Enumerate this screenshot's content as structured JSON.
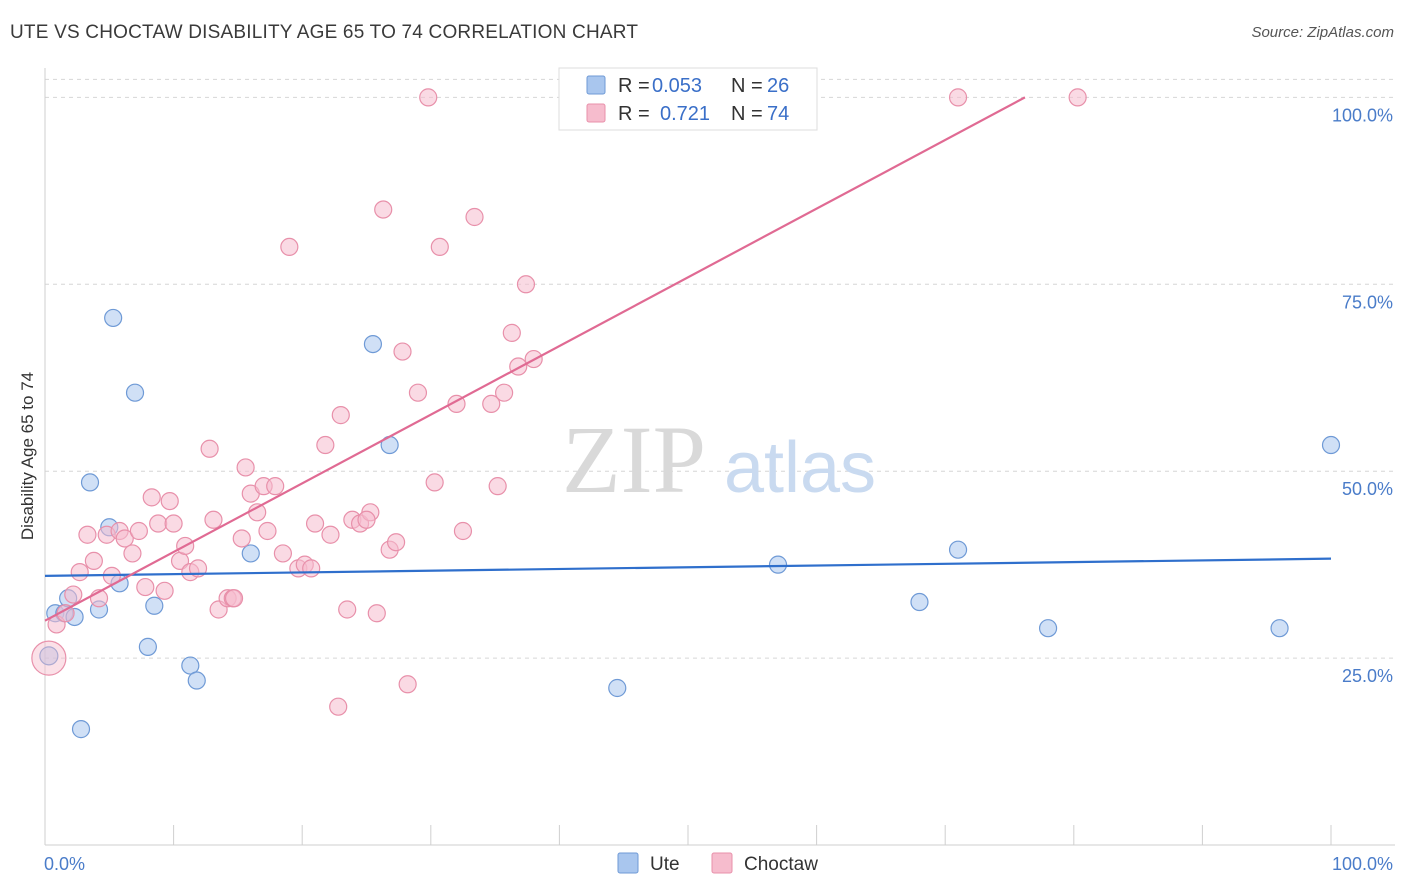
{
  "title": "UTE VS CHOCTAW DISABILITY AGE 65 TO 74 CORRELATION CHART",
  "source": "Source: ZipAtlas.com",
  "watermark": {
    "zip": "ZIP",
    "atlas": "atlas"
  },
  "colors": {
    "ute_fill": "#a9c6ee",
    "ute_stroke": "#6f9ad6",
    "ute_line": "#2f6fcc",
    "choctaw_fill": "#f6bccd",
    "choctaw_stroke": "#e890aa",
    "choctaw_line": "#e06a93",
    "tick_label": "#4a7cc9",
    "grid": "#d6d6d6"
  },
  "legend": {
    "rows": [
      {
        "series": "Ute",
        "r_label": "R =",
        "r_value": "0.053",
        "n_label": "N =",
        "n_value": "26"
      },
      {
        "series": "Choctaw",
        "r_label": "R =",
        "r_value": "0.721",
        "n_label": "N =",
        "n_value": "74"
      }
    ]
  },
  "chart_data": {
    "type": "scatter",
    "title": "UTE VS CHOCTAW DISABILITY AGE 65 TO 74 CORRELATION CHART",
    "xlabel": "",
    "ylabel": "Disability Age 65 to 74",
    "xlim": [
      0,
      100
    ],
    "ylim": [
      0,
      105
    ],
    "x_tick_labels": [
      "0.0%",
      "100.0%"
    ],
    "y_ticks": [
      25,
      50,
      75,
      100
    ],
    "y_tick_labels": [
      "25.0%",
      "50.0%",
      "75.0%",
      "100.0%"
    ],
    "grid": true,
    "legend_position": "top-center",
    "series": [
      {
        "name": "Ute",
        "r": 0.053,
        "n": 26,
        "trend": {
          "x0": 0,
          "y0": 36.0,
          "x1": 100,
          "y1": 38.3
        },
        "points": [
          {
            "x": 0.3,
            "y": 25.3
          },
          {
            "x": 0.8,
            "y": 31.0
          },
          {
            "x": 1.5,
            "y": 31.0
          },
          {
            "x": 1.8,
            "y": 33.0
          },
          {
            "x": 2.3,
            "y": 30.5
          },
          {
            "x": 2.8,
            "y": 15.5
          },
          {
            "x": 3.5,
            "y": 48.5
          },
          {
            "x": 4.2,
            "y": 31.5
          },
          {
            "x": 5.0,
            "y": 42.5
          },
          {
            "x": 5.3,
            "y": 70.5
          },
          {
            "x": 5.8,
            "y": 35.0
          },
          {
            "x": 7.0,
            "y": 60.5
          },
          {
            "x": 8.0,
            "y": 26.5
          },
          {
            "x": 8.5,
            "y": 32.0
          },
          {
            "x": 11.3,
            "y": 24.0
          },
          {
            "x": 11.8,
            "y": 22.0
          },
          {
            "x": 16.0,
            "y": 39.0
          },
          {
            "x": 25.5,
            "y": 67.0
          },
          {
            "x": 26.8,
            "y": 53.5
          },
          {
            "x": 44.5,
            "y": 21.0
          },
          {
            "x": 57.0,
            "y": 37.5
          },
          {
            "x": 68.0,
            "y": 32.5
          },
          {
            "x": 71.0,
            "y": 39.5
          },
          {
            "x": 78.0,
            "y": 29.0
          },
          {
            "x": 96.0,
            "y": 29.0
          },
          {
            "x": 100.0,
            "y": 53.5
          }
        ]
      },
      {
        "name": "Choctaw",
        "r": 0.721,
        "n": 74,
        "trend": {
          "x0": 0,
          "y0": 30.0,
          "x1": 76.2,
          "y1": 100.0
        },
        "points": [
          {
            "x": 0.3,
            "y": 25.0
          },
          {
            "x": 0.9,
            "y": 29.5
          },
          {
            "x": 1.6,
            "y": 31.0
          },
          {
            "x": 2.2,
            "y": 33.5
          },
          {
            "x": 2.7,
            "y": 36.5
          },
          {
            "x": 3.3,
            "y": 41.5
          },
          {
            "x": 3.8,
            "y": 38.0
          },
          {
            "x": 4.2,
            "y": 33.0
          },
          {
            "x": 4.8,
            "y": 41.5
          },
          {
            "x": 5.2,
            "y": 36.0
          },
          {
            "x": 5.8,
            "y": 42.0
          },
          {
            "x": 6.2,
            "y": 41.0
          },
          {
            "x": 6.8,
            "y": 39.0
          },
          {
            "x": 7.3,
            "y": 42.0
          },
          {
            "x": 7.8,
            "y": 34.5
          },
          {
            "x": 8.3,
            "y": 46.5
          },
          {
            "x": 8.8,
            "y": 43.0
          },
          {
            "x": 9.3,
            "y": 34.0
          },
          {
            "x": 9.7,
            "y": 46.0
          },
          {
            "x": 10.0,
            "y": 43.0
          },
          {
            "x": 10.5,
            "y": 38.0
          },
          {
            "x": 10.9,
            "y": 40.0
          },
          {
            "x": 11.3,
            "y": 36.5
          },
          {
            "x": 11.9,
            "y": 37.0
          },
          {
            "x": 12.8,
            "y": 53.0
          },
          {
            "x": 13.1,
            "y": 43.5
          },
          {
            "x": 13.5,
            "y": 31.5
          },
          {
            "x": 14.2,
            "y": 33.0
          },
          {
            "x": 14.6,
            "y": 33.0
          },
          {
            "x": 15.3,
            "y": 41.0
          },
          {
            "x": 15.6,
            "y": 50.5
          },
          {
            "x": 16.0,
            "y": 47.0
          },
          {
            "x": 16.5,
            "y": 44.5
          },
          {
            "x": 17.0,
            "y": 48.0
          },
          {
            "x": 17.3,
            "y": 42.0
          },
          {
            "x": 17.9,
            "y": 48.0
          },
          {
            "x": 18.5,
            "y": 39.0
          },
          {
            "x": 19.0,
            "y": 80.0
          },
          {
            "x": 19.7,
            "y": 37.0
          },
          {
            "x": 20.2,
            "y": 37.5
          },
          {
            "x": 20.7,
            "y": 37.0
          },
          {
            "x": 21.0,
            "y": 43.0
          },
          {
            "x": 21.8,
            "y": 53.5
          },
          {
            "x": 22.2,
            "y": 41.5
          },
          {
            "x": 23.0,
            "y": 57.5
          },
          {
            "x": 23.5,
            "y": 31.5
          },
          {
            "x": 23.9,
            "y": 43.5
          },
          {
            "x": 24.5,
            "y": 43.0
          },
          {
            "x": 25.3,
            "y": 44.5
          },
          {
            "x": 25.8,
            "y": 31.0
          },
          {
            "x": 26.3,
            "y": 85.0
          },
          {
            "x": 26.8,
            "y": 39.5
          },
          {
            "x": 27.3,
            "y": 40.5
          },
          {
            "x": 27.8,
            "y": 66.0
          },
          {
            "x": 28.2,
            "y": 21.5
          },
          {
            "x": 29.0,
            "y": 60.5
          },
          {
            "x": 29.8,
            "y": 100.0
          },
          {
            "x": 30.3,
            "y": 48.5
          },
          {
            "x": 30.7,
            "y": 80.0
          },
          {
            "x": 32.0,
            "y": 59.0
          },
          {
            "x": 32.5,
            "y": 42.0
          },
          {
            "x": 33.4,
            "y": 84.0
          },
          {
            "x": 34.7,
            "y": 59.0
          },
          {
            "x": 35.2,
            "y": 48.0
          },
          {
            "x": 35.7,
            "y": 60.5
          },
          {
            "x": 36.3,
            "y": 68.5
          },
          {
            "x": 36.8,
            "y": 64.0
          },
          {
            "x": 37.4,
            "y": 75.0
          },
          {
            "x": 38.0,
            "y": 65.0
          },
          {
            "x": 71.0,
            "y": 100.0
          },
          {
            "x": 80.3,
            "y": 100.0
          },
          {
            "x": 22.8,
            "y": 18.5
          },
          {
            "x": 25.0,
            "y": 43.5
          },
          {
            "x": 14.7,
            "y": 33.0
          }
        ]
      }
    ]
  },
  "bottom_legend": [
    {
      "series": "Ute",
      "label": "Ute"
    },
    {
      "series": "Choctaw",
      "label": "Choctaw"
    }
  ]
}
